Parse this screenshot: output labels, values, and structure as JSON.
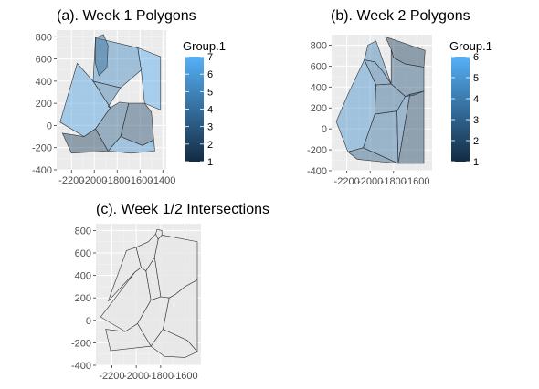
{
  "chart_data": [
    {
      "id": "week1",
      "type": "polygon-map",
      "title": "(a). Week 1 Polygons",
      "xlabel": "",
      "ylabel": "",
      "xlim": [
        -2330,
        -1370
      ],
      "ylim": [
        -400,
        860
      ],
      "xticks": [
        -2200,
        -2000,
        -1800,
        -1600,
        -1400
      ],
      "xtick_labels": [
        "-2200",
        "-2000",
        "-1800",
        "-1600",
        "-1400"
      ],
      "yticks": [
        -400,
        -200,
        0,
        200,
        400,
        600,
        800
      ],
      "ytick_labels": [
        "-400",
        "-200",
        "0",
        "200",
        "400",
        "600",
        "800"
      ],
      "legend": {
        "title": "Group.1",
        "min": 1,
        "max": 7,
        "ticks": [
          1,
          2,
          3,
          4,
          5,
          6,
          7
        ],
        "tick_labels": [
          "1",
          "2",
          "3",
          "4",
          "5",
          "6",
          "7"
        ],
        "color_low": "#132b43",
        "color_high": "#56b1f7",
        "placement": "right"
      },
      "polygons": [
        {
          "group": 5.2,
          "points": [
            [
              -1990,
              790
            ],
            [
              -1620,
              700
            ],
            [
              -1590,
              500
            ],
            [
              -1770,
              340
            ],
            [
              -2010,
              400
            ]
          ]
        },
        {
          "group": 6.6,
          "points": [
            [
              -1620,
              700
            ],
            [
              -1420,
              620
            ],
            [
              -1420,
              140
            ],
            [
              -1560,
              200
            ],
            [
              -1590,
              500
            ]
          ]
        },
        {
          "group": 6.2,
          "points": [
            [
              -2300,
              30
            ],
            [
              -2150,
              560
            ],
            [
              -2010,
              400
            ],
            [
              -1860,
              160
            ],
            [
              -1990,
              -30
            ],
            [
              -2090,
              -100
            ]
          ]
        },
        {
          "group": 3.8,
          "points": [
            [
              -1990,
              790
            ],
            [
              -1920,
              820
            ],
            [
              -1880,
              720
            ],
            [
              -1890,
              520
            ],
            [
              -1960,
              450
            ],
            [
              -1990,
              560
            ]
          ]
        },
        {
          "group": 4.5,
          "points": [
            [
              -2010,
              400
            ],
            [
              -1770,
              340
            ],
            [
              -1880,
              170
            ],
            [
              -1860,
              160
            ]
          ]
        },
        {
          "group": 3.4,
          "points": [
            [
              -1860,
              160
            ],
            [
              -1780,
              210
            ],
            [
              -1700,
              200
            ],
            [
              -1770,
              -100
            ],
            [
              -1880,
              -230
            ],
            [
              -1990,
              -30
            ]
          ]
        },
        {
          "group": 2.4,
          "points": [
            [
              -1700,
              200
            ],
            [
              -1560,
              200
            ],
            [
              -1500,
              120
            ],
            [
              -1480,
              -130
            ],
            [
              -1580,
              -180
            ],
            [
              -1770,
              -100
            ]
          ]
        },
        {
          "group": 5.6,
          "points": [
            [
              -1880,
              -230
            ],
            [
              -1770,
              -100
            ],
            [
              -1580,
              -180
            ],
            [
              -1480,
              -130
            ],
            [
              -1470,
              -230
            ],
            [
              -1680,
              -250
            ]
          ]
        },
        {
          "group": 1.8,
          "points": [
            [
              -2280,
              -70
            ],
            [
              -2090,
              -100
            ],
            [
              -1990,
              -30
            ],
            [
              -1880,
              -230
            ],
            [
              -2200,
              -250
            ]
          ]
        }
      ]
    },
    {
      "id": "week2",
      "type": "polygon-map",
      "title": "(b). Week 2 Polygons",
      "xlabel": "",
      "ylabel": "",
      "xlim": [
        -2330,
        -1470
      ],
      "ylim": [
        -400,
        900
      ],
      "xticks": [
        -2200,
        -2000,
        -1800,
        -1600
      ],
      "xtick_labels": [
        "-2200",
        "-2000",
        "-1800",
        "-1600"
      ],
      "yticks": [
        -400,
        -200,
        0,
        200,
        400,
        600,
        800
      ],
      "ytick_labels": [
        "-400",
        "-200",
        "0",
        "200",
        "400",
        "600",
        "800"
      ],
      "legend": {
        "title": "Group.1",
        "min": 1,
        "max": 6,
        "ticks": [
          1,
          2,
          3,
          4,
          5,
          6
        ],
        "tick_labels": [
          "1",
          "2",
          "3",
          "4",
          "5",
          "6"
        ],
        "color_low": "#132b43",
        "color_high": "#56b1f7",
        "placement": "right"
      },
      "polygons": [
        {
          "group": 4.8,
          "points": [
            [
              -2290,
              70
            ],
            [
              -2190,
              330
            ],
            [
              -2050,
              660
            ],
            [
              -1950,
              420
            ],
            [
              -1960,
              140
            ],
            [
              -2060,
              -180
            ],
            [
              -2190,
              -220
            ]
          ]
        },
        {
          "group": 3.6,
          "points": [
            [
              -2050,
              660
            ],
            [
              -1960,
              640
            ],
            [
              -1900,
              560
            ],
            [
              -1820,
              430
            ],
            [
              -1950,
              420
            ]
          ]
        },
        {
          "group": 4.2,
          "points": [
            [
              -2020,
              800
            ],
            [
              -1950,
              840
            ],
            [
              -1820,
              430
            ],
            [
              -1900,
              560
            ],
            [
              -1960,
              640
            ],
            [
              -2050,
              660
            ]
          ]
        },
        {
          "group": 3.2,
          "points": [
            [
              -1950,
              420
            ],
            [
              -1820,
              430
            ],
            [
              -1700,
              310
            ],
            [
              -1770,
              170
            ],
            [
              -1960,
              140
            ]
          ]
        },
        {
          "group": 3.5,
          "points": [
            [
              -1960,
              140
            ],
            [
              -1770,
              170
            ],
            [
              -1760,
              -330
            ],
            [
              -2060,
              -180
            ]
          ]
        },
        {
          "group": 3.8,
          "points": [
            [
              -1770,
              170
            ],
            [
              -1700,
              310
            ],
            [
              -1660,
              330
            ],
            [
              -1760,
              -330
            ]
          ]
        },
        {
          "group": 1.6,
          "points": [
            [
              -1870,
              880
            ],
            [
              -1530,
              750
            ],
            [
              -1540,
              590
            ],
            [
              -1700,
              620
            ],
            [
              -1800,
              680
            ],
            [
              -1820,
              760
            ]
          ]
        },
        {
          "group": 2.6,
          "points": [
            [
              -1820,
              760
            ],
            [
              -1800,
              680
            ],
            [
              -1700,
              620
            ],
            [
              -1540,
              590
            ],
            [
              -1540,
              360
            ],
            [
              -1630,
              320
            ],
            [
              -1700,
              310
            ],
            [
              -1820,
              430
            ]
          ]
        },
        {
          "group": 2.0,
          "points": [
            [
              -1760,
              -330
            ],
            [
              -1660,
              330
            ],
            [
              -1540,
              360
            ],
            [
              -1540,
              -330
            ]
          ]
        },
        {
          "group": 2.8,
          "points": [
            [
              -2190,
              -220
            ],
            [
              -2060,
              -180
            ],
            [
              -1760,
              -330
            ],
            [
              -2110,
              -290
            ]
          ]
        }
      ]
    },
    {
      "id": "intersections",
      "type": "polygon-map",
      "title": "(c). Week 1/2 Intersections",
      "xlabel": "",
      "ylabel": "",
      "xlim": [
        -2330,
        -1470
      ],
      "ylim": [
        -400,
        860
      ],
      "xticks": [
        -2200,
        -2000,
        -1800,
        -1600
      ],
      "xtick_labels": [
        "-2200",
        "-2000",
        "-1800",
        "-1600"
      ],
      "yticks": [
        -400,
        -200,
        0,
        200,
        400,
        600,
        800
      ],
      "ytick_labels": [
        "-400",
        "-200",
        "0",
        "200",
        "400",
        "600",
        "800"
      ],
      "fill": "#e8e8e8",
      "polygons": [
        {
          "points": [
            [
              -2290,
              30
            ],
            [
              -2010,
              430
            ],
            [
              -1960,
              470
            ],
            [
              -1920,
              440
            ],
            [
              -1880,
              180
            ],
            [
              -1990,
              -30
            ],
            [
              -2090,
              -100
            ]
          ]
        },
        {
          "points": [
            [
              -2230,
              170
            ],
            [
              -2080,
              620
            ],
            [
              -2000,
              650
            ],
            [
              -1960,
              470
            ],
            [
              -2010,
              430
            ]
          ]
        },
        {
          "points": [
            [
              -1960,
              470
            ],
            [
              -2000,
              650
            ],
            [
              -1900,
              700
            ],
            [
              -1840,
              770
            ],
            [
              -1820,
              720
            ],
            [
              -1850,
              560
            ],
            [
              -1920,
              440
            ]
          ]
        },
        {
          "points": [
            [
              -1840,
              770
            ],
            [
              -1830,
              810
            ],
            [
              -1790,
              800
            ],
            [
              -1790,
              760
            ],
            [
              -1820,
              720
            ]
          ]
        },
        {
          "points": [
            [
              -1790,
              760
            ],
            [
              -1500,
              700
            ],
            [
              -1500,
              360
            ],
            [
              -1600,
              300
            ],
            [
              -1680,
              230
            ],
            [
              -1730,
              200
            ],
            [
              -1800,
              210
            ],
            [
              -1850,
              560
            ],
            [
              -1820,
              720
            ]
          ]
        },
        {
          "points": [
            [
              -1920,
              440
            ],
            [
              -1850,
              560
            ],
            [
              -1800,
              210
            ],
            [
              -1880,
              180
            ]
          ]
        },
        {
          "points": [
            [
              -1880,
              180
            ],
            [
              -1800,
              210
            ],
            [
              -1730,
              200
            ],
            [
              -1780,
              -80
            ],
            [
              -1880,
              -230
            ],
            [
              -1990,
              -30
            ]
          ]
        },
        {
          "points": [
            [
              -1730,
              200
            ],
            [
              -1680,
              230
            ],
            [
              -1600,
              300
            ],
            [
              -1500,
              360
            ],
            [
              -1500,
              -280
            ],
            [
              -1580,
              -180
            ],
            [
              -1780,
              -80
            ]
          ]
        },
        {
          "points": [
            [
              -1880,
              -230
            ],
            [
              -1780,
              -80
            ],
            [
              -1580,
              -180
            ],
            [
              -1500,
              -280
            ],
            [
              -1600,
              -330
            ],
            [
              -1770,
              -320
            ]
          ]
        },
        {
          "points": [
            [
              -2250,
              -80
            ],
            [
              -2090,
              -100
            ],
            [
              -1990,
              -30
            ],
            [
              -1880,
              -230
            ],
            [
              -2210,
              -270
            ]
          ]
        }
      ]
    }
  ]
}
